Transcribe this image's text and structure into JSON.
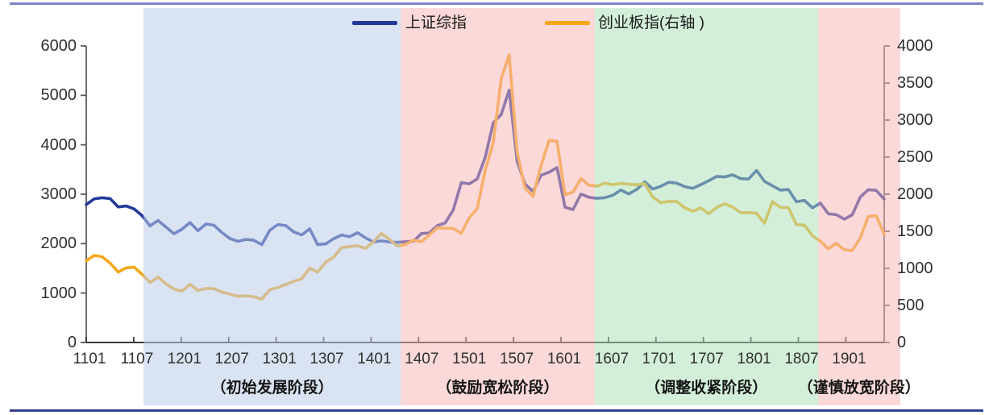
{
  "figure": {
    "top_rule_color": "#7b84c6",
    "bottom_rule_color": "#34418f",
    "background_color": "#ffffff"
  },
  "chart_data": {
    "type": "line",
    "title": "",
    "grid": false,
    "legend_position": "top-center",
    "x_tick_labels": [
      "1101",
      "1107",
      "1201",
      "1207",
      "1301",
      "1307",
      "1401",
      "1407",
      "1501",
      "1507",
      "1601",
      "1607",
      "1701",
      "1707",
      "1801",
      "1807",
      "1901"
    ],
    "left_axis": {
      "range": [
        0,
        6000
      ],
      "ticks": [
        0,
        1000,
        2000,
        3000,
        4000,
        5000,
        6000
      ]
    },
    "right_axis": {
      "range": [
        0,
        4000
      ],
      "ticks": [
        0,
        500,
        1000,
        1500,
        2000,
        2500,
        3000,
        3500,
        4000
      ]
    },
    "axis_color": "#5a5a5a",
    "series": [
      {
        "name": "上证综指",
        "axis": "left",
        "color": "#23389b",
        "x_start_label": "1101",
        "x_step_months": 1,
        "values": [
          2790,
          2905,
          2928,
          2911,
          2743,
          2762,
          2701,
          2567,
          2359,
          2468,
          2333,
          2199,
          2293,
          2428,
          2263,
          2396,
          2372,
          2225,
          2103,
          2047,
          2086,
          2068,
          1980,
          2269,
          2385,
          2365,
          2237,
          2177,
          2301,
          1979,
          1994,
          2098,
          2175,
          2141,
          2221,
          2116,
          2033,
          2056,
          2033,
          2026,
          2039,
          2048,
          2202,
          2217,
          2364,
          2420,
          2683,
          3235,
          3210,
          3310,
          3748,
          4442,
          4612,
          5105,
          3664,
          3206,
          3053,
          3383,
          3445,
          3539,
          2738,
          2688,
          3004,
          2938,
          2917,
          2930,
          2979,
          3085,
          3005,
          3100,
          3250,
          3104,
          3159,
          3242,
          3223,
          3155,
          3117,
          3192,
          3273,
          3361,
          3349,
          3393,
          3317,
          3307,
          3481,
          3259,
          3169,
          3082,
          3095,
          2847,
          2876,
          2725,
          2821,
          2603,
          2588,
          2494,
          2585,
          2941,
          3091,
          3078,
          2899
        ]
      },
      {
        "name": "创业板指(右轴 )",
        "axis": "right",
        "color": "#f5a81c",
        "x_start_label": "1101",
        "x_step_months": 1,
        "values": [
          1100,
          1175,
          1156,
          1070,
          950,
          1006,
          1016,
          920,
          810,
          880,
          790,
          720,
          693,
          785,
          702,
          729,
          726,
          680,
          652,
          624,
          629,
          617,
          585,
          713,
          740,
          782,
          824,
          859,
          1002,
          950,
          1083,
          1150,
          1280,
          1292,
          1304,
          1271,
          1359,
          1471,
          1389,
          1301,
          1321,
          1380,
          1359,
          1450,
          1548,
          1540,
          1538,
          1472,
          1682,
          1804,
          2324,
          2688,
          3557,
          3880,
          2567,
          2077,
          1972,
          2385,
          2727,
          2714,
          1994,
          2028,
          2210,
          2122,
          2110,
          2149,
          2128,
          2146,
          2135,
          2127,
          2142,
          1962,
          1886,
          1904,
          1900,
          1817,
          1768,
          1818,
          1737,
          1820,
          1873,
          1826,
          1752,
          1752,
          1743,
          1609,
          1900,
          1822,
          1819,
          1589,
          1584,
          1441,
          1365,
          1264,
          1338,
          1250,
          1240,
          1410,
          1700,
          1710,
          1460
        ]
      }
    ],
    "phases": [
      {
        "label": "（初始发展阶段）",
        "band_color": "rgba(187,204,232,0.55)",
        "start_month_index": 7.2,
        "end_month_index": 39.4
      },
      {
        "label": "（鼓励宽松阶段）",
        "band_color": "rgba(248,182,182,0.52)",
        "start_month_index": 39.4,
        "end_month_index": 63.7
      },
      {
        "label": "（调整收紧阶段）",
        "band_color": "rgba(170,225,184,0.52)",
        "start_month_index": 63.7,
        "end_month_index": 91.7
      },
      {
        "label": "（谨慎放宽阶段）",
        "band_color": "rgba(248,182,182,0.52)",
        "start_month_index": 91.7,
        "end_month_index": 102
      }
    ]
  }
}
